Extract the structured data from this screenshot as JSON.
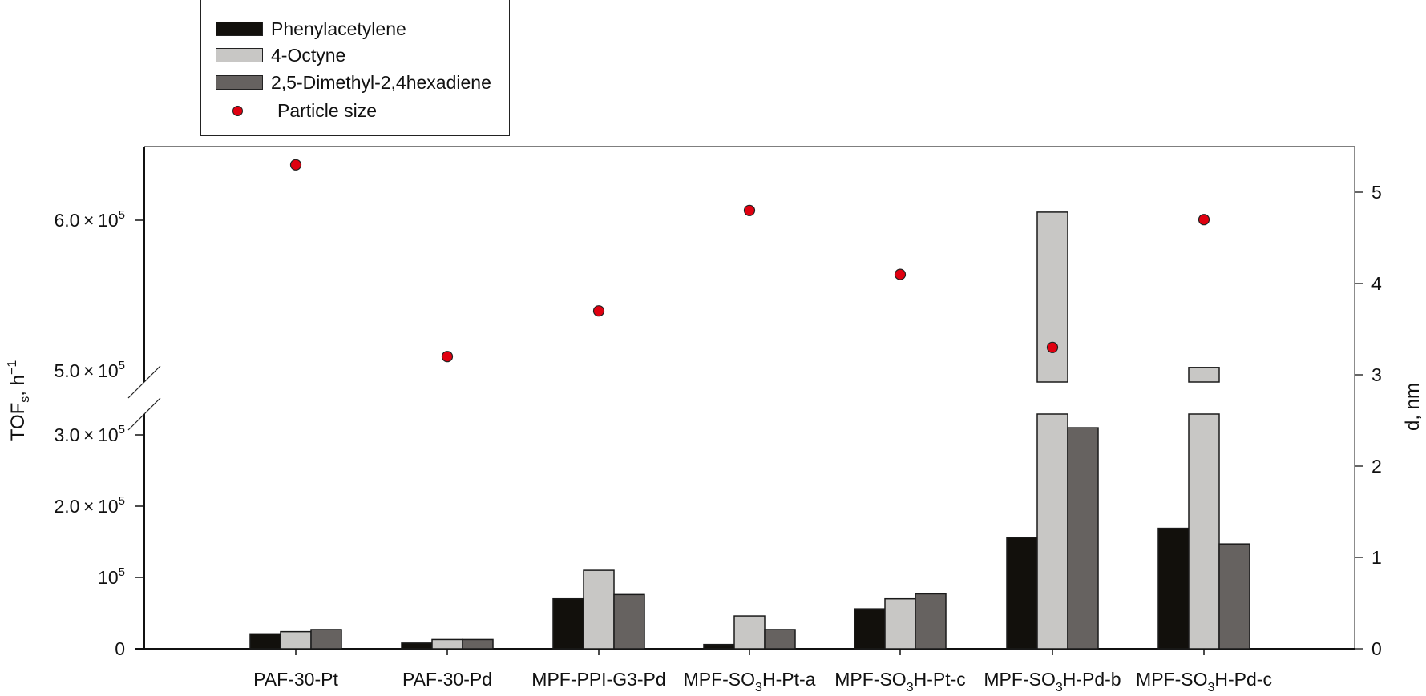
{
  "chart_data": {
    "type": "bar",
    "title": "",
    "xlabel": "",
    "ylabel": "TOF_s, h^-1",
    "ylabel_parts": {
      "main": "TOF",
      "sub": "s",
      "rest": ", h",
      "sup": "−1"
    },
    "y2label": "d, nm",
    "categories": [
      "PAF-30-Pt",
      "PAF-30-Pd",
      "MPF-PPI-G3-Pd",
      "MPF-SO3H-Pt-a",
      "MPF-SO3H-Pt-c",
      "MPF-SO3H-Pd-b",
      "MPF-SO3H-Pd-c"
    ],
    "category_labels": [
      {
        "pre": "PAF-30-Pt",
        "sub": "",
        "post": ""
      },
      {
        "pre": "PAF-30-Pd",
        "sub": "",
        "post": ""
      },
      {
        "pre": "MPF-PPI-G3-Pd",
        "sub": "",
        "post": ""
      },
      {
        "pre": "MPF-SO",
        "sub": "3",
        "post": "H-Pt-a"
      },
      {
        "pre": "MPF-SO",
        "sub": "3",
        "post": "H-Pt-c"
      },
      {
        "pre": "MPF-SO",
        "sub": "3",
        "post": "H-Pd-b"
      },
      {
        "pre": "MPF-SO",
        "sub": "3",
        "post": "H-Pd-c"
      }
    ],
    "series": [
      {
        "name": "Phenylacetylene",
        "type": "bar",
        "axis": "left",
        "color": "#12100c",
        "values": [
          21000,
          8000,
          70000,
          6000,
          56000,
          156000,
          169000
        ]
      },
      {
        "name": "4-Octyne",
        "type": "bar",
        "axis": "left",
        "color": "#c8c7c5",
        "values": [
          24000,
          13000,
          110000,
          46000,
          70000,
          605000,
          509000
        ]
      },
      {
        "name": "2,5-Dimethyl-2,4hexadiene",
        "type": "bar",
        "axis": "left",
        "color": "#666260",
        "values": [
          27000,
          13000,
          76000,
          27000,
          77000,
          310000,
          147000
        ]
      },
      {
        "name": "Particle size",
        "type": "scatter",
        "axis": "right",
        "color": "#e00010",
        "values": [
          5.3,
          3.2,
          3.7,
          4.8,
          4.1,
          3.3,
          4.7
        ]
      }
    ],
    "y_axis": {
      "broken": true,
      "lower_range": [
        0,
        330000
      ],
      "upper_range": [
        500000,
        640000
      ],
      "ticks": [
        {
          "value": 0,
          "label": "0"
        },
        {
          "value": 100000,
          "label": "10",
          "exp": "5",
          "mantissa": ""
        },
        {
          "value": 200000,
          "label": "2.0 × 10",
          "exp": "5",
          "mantissa": "2.0"
        },
        {
          "value": 300000,
          "label": "3.0 × 10",
          "exp": "5",
          "mantissa": "3.0"
        },
        {
          "value": 500000,
          "label": "5.0 × 10",
          "exp": "5",
          "mantissa": "5.0"
        },
        {
          "value": 600000,
          "label": "6.0 × 10",
          "exp": "5",
          "mantissa": "6.0"
        }
      ]
    },
    "y2_axis": {
      "range": [
        0,
        5.5
      ],
      "ticks": [
        0,
        1,
        2,
        3,
        4,
        5
      ]
    },
    "legend_position": "top-left, outside plot",
    "grid": false
  },
  "legend": {
    "items": [
      {
        "label": "Phenylacetylene",
        "kind": "bar",
        "color": "#12100c"
      },
      {
        "label": "4-Octyne",
        "kind": "bar",
        "color": "#c8c7c5"
      },
      {
        "label": "2,5-Dimethyl-2,4hexadiene",
        "kind": "bar",
        "color": "#666260"
      },
      {
        "label": "Particle size",
        "kind": "dot",
        "color": "#e00010"
      }
    ]
  }
}
